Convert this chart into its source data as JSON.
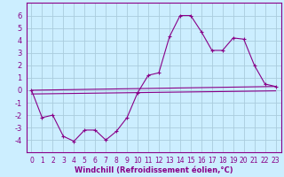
{
  "xlabel": "Windchill (Refroidissement éolien,°C)",
  "bg_color": "#cceeff",
  "grid_color": "#aaccdd",
  "line_color": "#880088",
  "spine_color": "#880088",
  "xlim": [
    -0.5,
    23.5
  ],
  "ylim": [
    -5.0,
    7.0
  ],
  "xticks": [
    0,
    1,
    2,
    3,
    4,
    5,
    6,
    7,
    8,
    9,
    10,
    11,
    12,
    13,
    14,
    15,
    16,
    17,
    18,
    19,
    20,
    21,
    22,
    23
  ],
  "yticks": [
    -4,
    -3,
    -2,
    -1,
    0,
    1,
    2,
    3,
    4,
    5,
    6
  ],
  "line1_x": [
    0,
    1,
    2,
    3,
    4,
    5,
    6,
    7,
    8,
    9,
    10,
    11,
    12,
    13,
    14,
    15,
    16,
    17,
    18,
    19,
    20,
    21,
    22,
    23
  ],
  "line1_y": [
    0.0,
    -2.2,
    -2.0,
    -3.7,
    -4.1,
    -3.2,
    -3.2,
    -4.0,
    -3.3,
    -2.2,
    -0.2,
    1.2,
    1.4,
    4.3,
    6.0,
    6.0,
    4.7,
    3.2,
    3.2,
    4.2,
    4.1,
    2.0,
    0.5,
    0.3
  ],
  "line2_x": [
    0,
    23
  ],
  "line2_y": [
    0.0,
    0.3
  ],
  "line3_x": [
    0,
    23
  ],
  "line3_y": [
    -0.3,
    -0.05
  ],
  "marker": "+",
  "lw": 0.8,
  "ms": 3.5,
  "xlabel_fontsize": 6.0,
  "tick_fontsize": 5.5
}
